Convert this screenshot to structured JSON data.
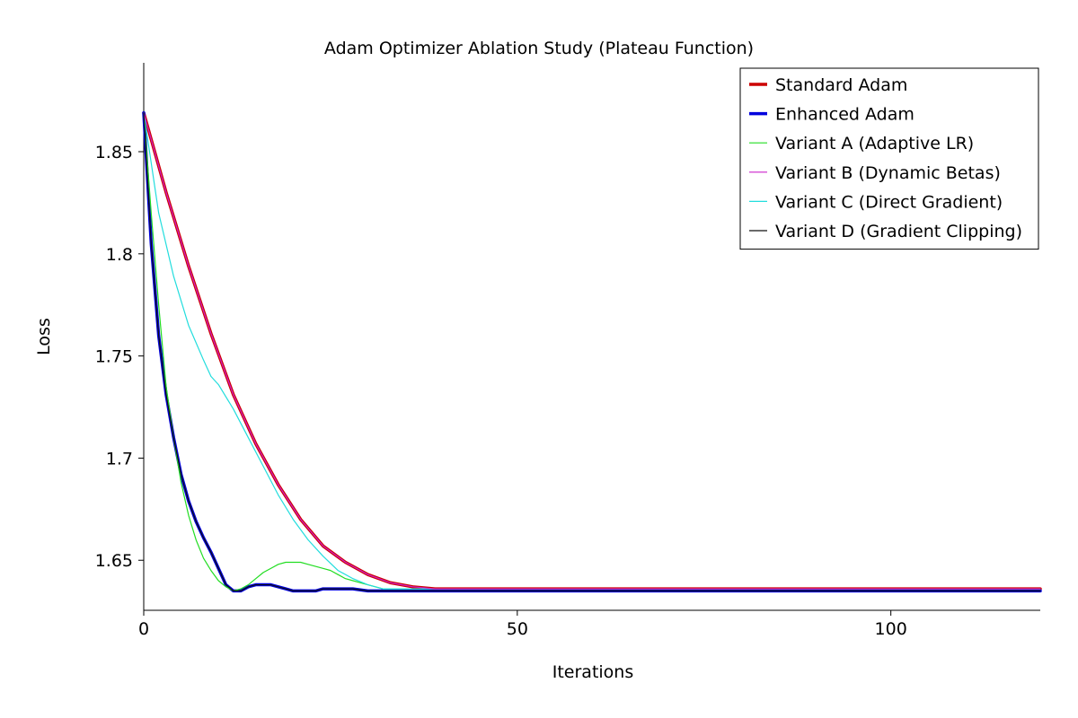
{
  "chart_data": {
    "type": "line",
    "title": "Adam Optimizer Ablation Study (Plateau Function)",
    "xlabel": "Iterations",
    "ylabel": "Loss",
    "xlim": [
      0,
      120
    ],
    "ylim": [
      1.6255,
      1.8935
    ],
    "x_ticks": [
      0,
      50,
      100
    ],
    "y_ticks": [
      1.65,
      1.7,
      1.75,
      1.8,
      1.85
    ],
    "x_tick_labels": [
      "0",
      "50",
      "100"
    ],
    "y_tick_labels": [
      "1.65",
      "1.7",
      "1.75",
      "1.8",
      "1.85"
    ],
    "grid": false,
    "legend_position": "top-right",
    "series": [
      {
        "name": "Standard Adam",
        "color": "#cc0000",
        "width": 3.5,
        "x": [
          0,
          3,
          6,
          9,
          12,
          15,
          18,
          21,
          24,
          27,
          30,
          33,
          36,
          39,
          42,
          45,
          50,
          60,
          70,
          80,
          100,
          120
        ],
        "y": [
          1.869,
          1.83,
          1.794,
          1.761,
          1.731,
          1.707,
          1.687,
          1.67,
          1.657,
          1.649,
          1.643,
          1.639,
          1.637,
          1.636,
          1.636,
          1.636,
          1.636,
          1.636,
          1.636,
          1.636,
          1.636,
          1.636
        ]
      },
      {
        "name": "Enhanced Adam",
        "color": "#0000dd",
        "width": 3.5,
        "x": [
          0,
          1,
          2,
          3,
          4,
          5,
          6,
          7,
          8,
          9,
          10,
          11,
          12,
          13,
          14,
          15,
          16,
          17,
          18,
          19,
          20,
          21,
          22,
          23,
          24,
          25,
          26,
          28,
          30,
          33,
          36,
          40,
          45,
          50,
          60,
          70,
          80,
          100,
          120
        ],
        "y": [
          1.869,
          1.805,
          1.76,
          1.731,
          1.71,
          1.692,
          1.679,
          1.669,
          1.661,
          1.654,
          1.646,
          1.638,
          1.635,
          1.635,
          1.637,
          1.638,
          1.638,
          1.638,
          1.637,
          1.636,
          1.635,
          1.635,
          1.635,
          1.635,
          1.636,
          1.636,
          1.636,
          1.636,
          1.635,
          1.635,
          1.635,
          1.635,
          1.635,
          1.635,
          1.635,
          1.635,
          1.635,
          1.635,
          1.635
        ]
      },
      {
        "name": "Variant A (Adaptive LR)",
        "color": "#22dd22",
        "width": 1.2,
        "x": [
          0,
          1,
          2,
          3,
          4,
          5,
          6,
          7,
          8,
          9,
          10,
          11,
          12,
          13,
          14,
          15,
          16,
          17,
          18,
          19,
          20,
          21,
          22,
          23,
          24,
          25,
          26,
          27,
          28,
          29,
          30,
          31,
          32,
          33,
          34,
          36,
          40,
          45,
          50,
          60,
          70,
          80,
          100,
          120
        ],
        "y": [
          1.869,
          1.82,
          1.775,
          1.735,
          1.71,
          1.688,
          1.672,
          1.66,
          1.651,
          1.645,
          1.64,
          1.637,
          1.635,
          1.636,
          1.638,
          1.641,
          1.644,
          1.646,
          1.648,
          1.649,
          1.649,
          1.649,
          1.648,
          1.647,
          1.646,
          1.645,
          1.643,
          1.641,
          1.64,
          1.639,
          1.638,
          1.637,
          1.636,
          1.636,
          1.636,
          1.636,
          1.636,
          1.636,
          1.636,
          1.636,
          1.636,
          1.636,
          1.636,
          1.636
        ]
      },
      {
        "name": "Variant B (Dynamic Betas)",
        "color": "#cc22cc",
        "width": 1.2,
        "x": [
          0,
          3,
          6,
          9,
          12,
          15,
          18,
          21,
          24,
          27,
          30,
          33,
          36,
          39,
          42,
          45,
          50,
          60,
          70,
          80,
          100,
          120
        ],
        "y": [
          1.869,
          1.83,
          1.794,
          1.761,
          1.731,
          1.707,
          1.687,
          1.67,
          1.657,
          1.649,
          1.643,
          1.639,
          1.637,
          1.636,
          1.636,
          1.636,
          1.636,
          1.636,
          1.636,
          1.636,
          1.636,
          1.636
        ]
      },
      {
        "name": "Variant C (Direct Gradient)",
        "color": "#22dddd",
        "width": 1.2,
        "x": [
          0,
          2,
          4,
          6,
          8,
          9,
          10,
          12,
          14,
          16,
          18,
          20,
          22,
          24,
          26,
          28,
          30,
          32,
          34,
          36,
          40,
          45,
          50,
          60,
          70,
          80,
          100,
          120
        ],
        "y": [
          1.869,
          1.82,
          1.789,
          1.765,
          1.748,
          1.74,
          1.736,
          1.724,
          1.71,
          1.696,
          1.682,
          1.67,
          1.66,
          1.652,
          1.645,
          1.641,
          1.638,
          1.636,
          1.636,
          1.636,
          1.636,
          1.636,
          1.636,
          1.636,
          1.636,
          1.636,
          1.636,
          1.636
        ]
      },
      {
        "name": "Variant D (Gradient Clipping)",
        "color": "#111111",
        "width": 1.2,
        "x": [
          0,
          1,
          2,
          3,
          4,
          5,
          6,
          7,
          8,
          9,
          10,
          11,
          12,
          13,
          14,
          15,
          16,
          17,
          18,
          19,
          20,
          21,
          22,
          23,
          24,
          25,
          26,
          28,
          30,
          33,
          36,
          40,
          45,
          50,
          60,
          70,
          80,
          100,
          120
        ],
        "y": [
          1.869,
          1.805,
          1.76,
          1.731,
          1.71,
          1.692,
          1.679,
          1.669,
          1.661,
          1.654,
          1.646,
          1.638,
          1.635,
          1.635,
          1.637,
          1.638,
          1.638,
          1.638,
          1.637,
          1.636,
          1.635,
          1.635,
          1.635,
          1.635,
          1.636,
          1.636,
          1.636,
          1.636,
          1.635,
          1.635,
          1.635,
          1.635,
          1.635,
          1.635,
          1.635,
          1.635,
          1.635,
          1.635,
          1.635
        ]
      }
    ]
  }
}
